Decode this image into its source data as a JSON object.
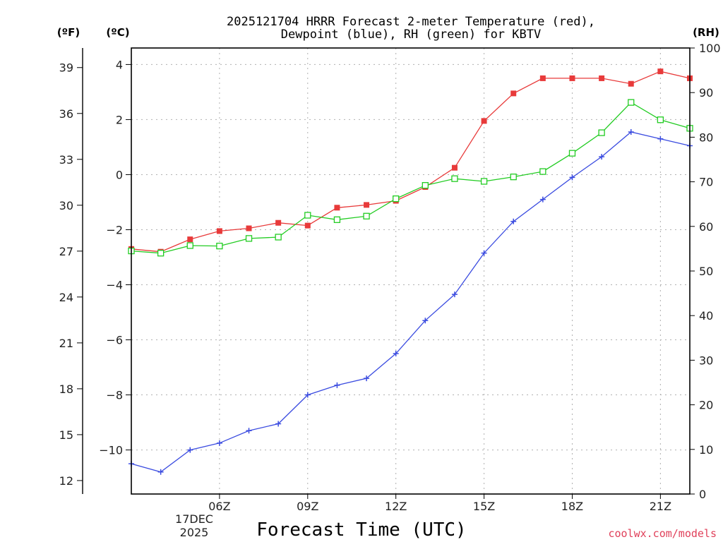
{
  "chart_data": {
    "type": "line",
    "title_line1": "2025121704 HRRR Forecast 2-meter Temperature (red),",
    "title_line2": "Dewpoint (blue), RH (green) for KBTV",
    "xlabel": "Forecast Time (UTC)",
    "units": {
      "fahrenheit": "(ºF)",
      "celsius": "(ºC)",
      "rh": "(RH)"
    },
    "date_label": {
      "day": "17DEC",
      "year": "2025"
    },
    "credit": "coolwx.com/models",
    "x_hours": [
      3,
      4,
      5,
      6,
      7,
      8,
      9,
      10,
      11,
      12,
      13,
      14,
      15,
      16,
      17,
      18,
      19,
      20,
      21,
      22
    ],
    "x_range": [
      3,
      22
    ],
    "x_ticks": [
      {
        "hour": 6,
        "label": "06Z"
      },
      {
        "hour": 9,
        "label": "09Z"
      },
      {
        "hour": 12,
        "label": "12Z"
      },
      {
        "hour": 15,
        "label": "15Z"
      },
      {
        "hour": 18,
        "label": "18Z"
      },
      {
        "hour": 21,
        "label": "21Z"
      }
    ],
    "celsius_axis": {
      "range": [
        -11.6,
        4.6
      ],
      "ticks": [
        4,
        2,
        0,
        -2,
        -4,
        -6,
        -8,
        -10
      ]
    },
    "fahrenheit_axis": {
      "ticks": [
        39,
        36,
        33,
        30,
        27,
        24,
        21,
        18,
        15,
        12
      ]
    },
    "rh_axis": {
      "range": [
        0,
        100
      ],
      "ticks": [
        100,
        90,
        80,
        70,
        60,
        50,
        40,
        30,
        20,
        10,
        0
      ]
    },
    "series": [
      {
        "name": "Temperature",
        "axis": "celsius",
        "color": "#e83a3a",
        "marker": "filled-square",
        "values": [
          -2.7,
          -2.8,
          -2.35,
          -2.05,
          -1.95,
          -1.75,
          -1.85,
          -1.2,
          -1.1,
          -0.95,
          -0.45,
          0.25,
          1.95,
          2.95,
          3.5,
          3.5,
          3.5,
          3.3,
          3.75,
          3.5
        ]
      },
      {
        "name": "Dewpoint",
        "axis": "celsius",
        "color": "#3a4be0",
        "marker": "plus",
        "values": [
          -10.5,
          -10.8,
          -10.0,
          -9.75,
          -9.3,
          -9.05,
          -8.0,
          -7.65,
          -7.4,
          -6.5,
          -5.3,
          -4.35,
          -2.85,
          -1.7,
          -0.9,
          -0.1,
          0.65,
          1.55,
          1.3,
          1.05
        ]
      },
      {
        "name": "RH",
        "axis": "rh",
        "color": "#22cc22",
        "marker": "open-square",
        "values": [
          54.5,
          54.0,
          55.7,
          55.6,
          57.3,
          57.6,
          62.5,
          61.5,
          62.3,
          66.2,
          69.2,
          70.7,
          70.1,
          71.1,
          72.3,
          76.4,
          81.0,
          87.8,
          83.9,
          82.0
        ]
      }
    ]
  }
}
